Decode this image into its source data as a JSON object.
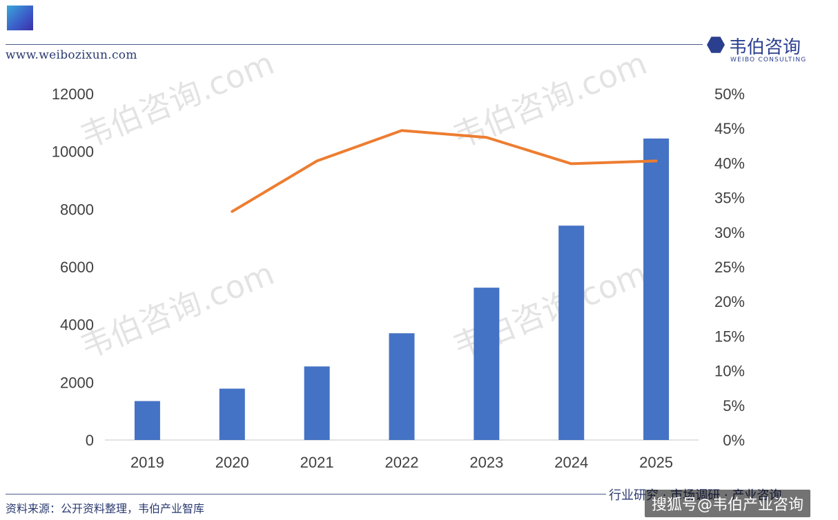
{
  "header": {
    "url": "www.weibozixun.com",
    "brand_name": "韦伯咨询",
    "brand_en": "WEIBO CONSULTING"
  },
  "watermark": "韦伯咨询.com",
  "footer": {
    "source": "资料来源：公开资料整理，韦伯产业智库",
    "tagline": "行业研究 · 市场调研 · 产业咨询",
    "credit": "搜狐号@韦伯产业咨询"
  },
  "colors": {
    "bar": "#4472c4",
    "line": "#ed7d31",
    "axis_text": "#404040"
  },
  "chart_data": {
    "type": "bar",
    "categories": [
      "2019",
      "2020",
      "2021",
      "2022",
      "2023",
      "2024",
      "2025"
    ],
    "series": [
      {
        "type": "bar",
        "axis": "left",
        "values": [
          1350,
          1780,
          2550,
          3700,
          5280,
          7430,
          10450
        ]
      },
      {
        "type": "line",
        "axis": "right",
        "values": [
          null,
          0.33,
          0.403,
          0.447,
          0.437,
          0.399,
          0.403
        ]
      }
    ],
    "y_left": {
      "ticks": [
        "0",
        "2000",
        "4000",
        "6000",
        "8000",
        "10000",
        "12000"
      ],
      "range": [
        0,
        12000
      ]
    },
    "y_right": {
      "ticks": [
        "0%",
        "5%",
        "10%",
        "15%",
        "20%",
        "25%",
        "30%",
        "35%",
        "40%",
        "45%",
        "50%"
      ],
      "range": [
        0,
        0.5
      ]
    },
    "legend": "none",
    "grid": false
  }
}
